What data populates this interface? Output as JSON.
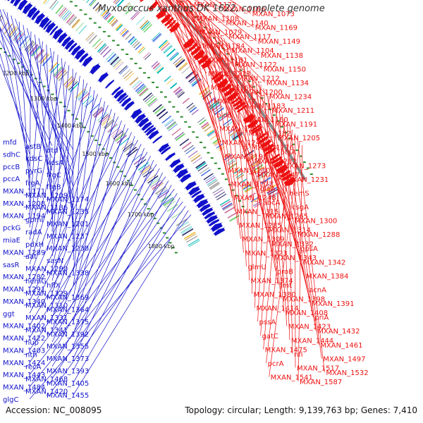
{
  "title": "Myxococcus xanthus DK 1622, complete genome",
  "accession": "Accession: NC_008095",
  "summary": "Topology: circular; Length: 9,139,763 bp; Genes: 7,410",
  "colors": {
    "forward": "#ee1111",
    "reverse": "#1111cc",
    "backbone": "#888888",
    "tick": "#2a8a2a"
  },
  "scale_labels": [
    "1100 kbp",
    "1200 kbp",
    "1300 kbp",
    "1400 kbp",
    "1500 kbp",
    "1600 kbp",
    "1700 kbp",
    "1800 kbp"
  ],
  "left_labels": [
    "mfd",
    "astB",
    "dtd",
    "sdhC",
    "kdsC",
    "kdsA",
    "pccB",
    "pyrG",
    "frgC",
    "pccA",
    "frgA",
    "frgB",
    "MXAN_1171",
    "MXAN_1209",
    "MXAN_1174",
    "MXAN_1208",
    "MXAN_1186",
    "MXAN_1235",
    "MXAN_1194",
    "gpmI",
    "MXAN_1201",
    "pckG",
    "radA",
    "MXAN_1237",
    "miaE",
    "pdxH",
    "MXAN_1238",
    "MXAN_1289",
    "aat",
    "sasN",
    "sasR",
    "MXAN_1290",
    "MXAN_1338",
    "MXAN_1282",
    "hemG",
    "hflX",
    "MXAN_1291",
    "MXAN_1329",
    "MXAN_1369",
    "MXAN_1340",
    "MXAN_1310",
    "MXAN_1364",
    "ggt",
    "MXAN_1331",
    "MXAN_1375",
    "MXAN_1402",
    "MXAN_1341",
    "MXAN_1392",
    "MXAN_1422",
    "hup",
    "MXAN_1355",
    "MXAN_1403",
    "nth",
    "MXAN_1373",
    "MXAN_1424",
    "recA",
    "MXAN_1393",
    "MXAN_1443",
    "MXAN_1468",
    "MXAN_1405",
    "MXAN_1484",
    "MXAN_1420",
    "MXAN_1455",
    "glgC"
  ],
  "right_labels": [
    "MXAN_1172",
    "MXAN_1166",
    "MXAN_1073",
    "MXAN_1108",
    "MXAN_1140",
    "MXAN_1169",
    "MXAN_1079",
    "MXAN_1117",
    "MXAN_1149",
    "MXAN_1184",
    "MXAN_1104",
    "MXAN_1138",
    "MXAN_1181",
    "MXAN_1122",
    "MXAN_1150",
    "MXAN_1213",
    "MXAN_1212",
    "MXAN_1134",
    "MXAN_1165",
    "MXAN_1200",
    "MXAN_1234",
    "MXAN_1147",
    "MXAN_1183",
    "MXAN_1211",
    "bioB",
    "MXAN_1160",
    "MXAN_1191",
    "MXAN_1233",
    "MXAN_1182",
    "MXAN_1205",
    "MXAN_1243",
    "MXAN_1276",
    "otsA",
    "MXAN_1198",
    "MXAN_1232",
    "MXAN_1273",
    "MXAN_1210",
    "MXAN_1247",
    "MXAN_1231",
    "MXAN_1272",
    "glgA",
    "hemS",
    "MXAN_1248",
    "abcA",
    "csgA",
    "MXAN_1315",
    "MXAN_1265",
    "MXAN_1300",
    "MXAN_1285",
    "MXAN_1314",
    "MXAN_1288",
    "MXAN_1309",
    "MXAN_1332",
    "gpsA",
    "MXAN_1323",
    "MXAN_1343",
    "MXAN_1342",
    "glmU",
    "proB",
    "MXAN_1384",
    "MXAN_1374",
    "fmt",
    "acnA",
    "MXAN_1380",
    "MXAN_1398",
    "MXAN_1391",
    "MXAN_1414",
    "MXAN_1408",
    "priA",
    "pssA",
    "MXAN_1423",
    "MXAN_1432",
    "gatC",
    "MXAN_1444",
    "MXAN_1461",
    "MXAN_1475",
    "nfi",
    "MXAN_1497",
    "pcrA",
    "MXAN_1517",
    "MXAN_1532",
    "MXAN_1541",
    "MXAN_1587"
  ]
}
